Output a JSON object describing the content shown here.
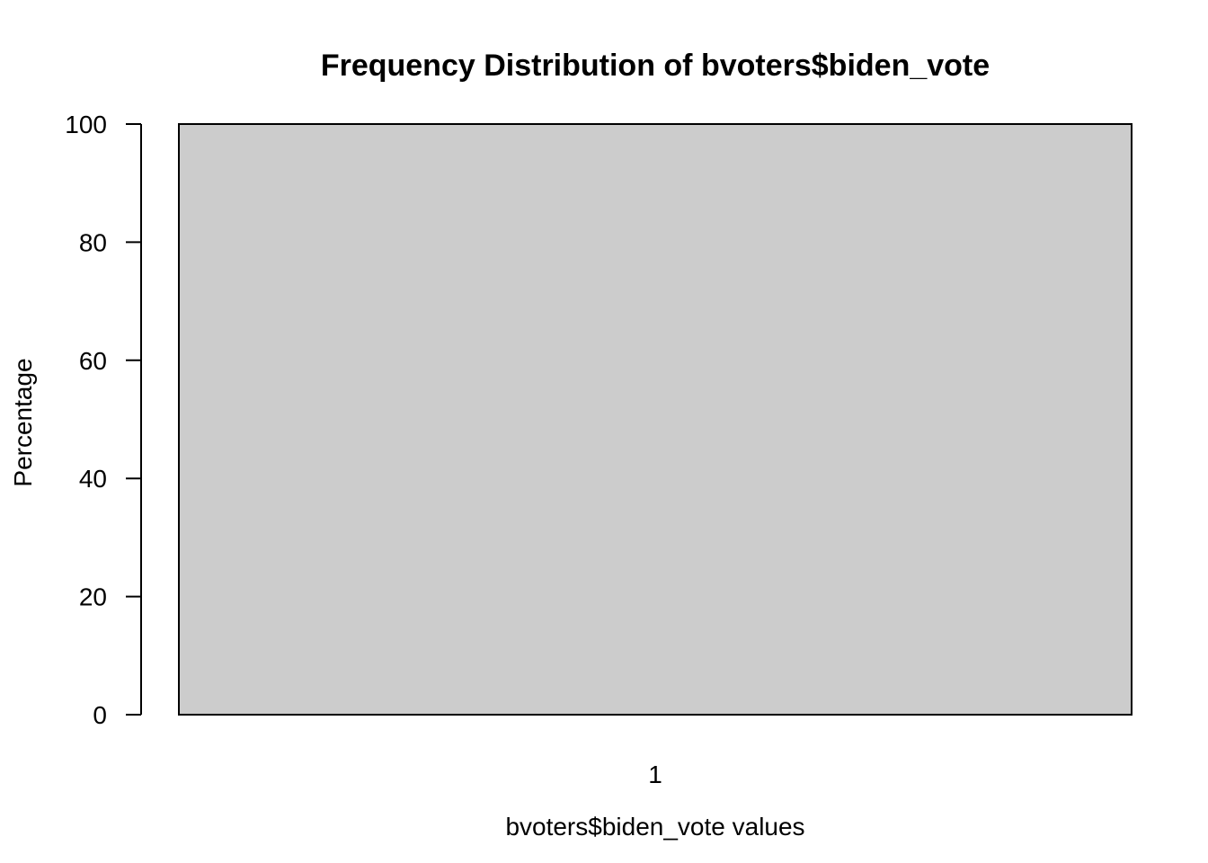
{
  "chart_data": {
    "type": "bar",
    "title": "Frequency Distribution of bvoters$biden_vote",
    "xlabel": "bvoters$biden_vote values",
    "ylabel": "Percentage",
    "categories": [
      "1"
    ],
    "values": [
      100
    ],
    "ylim": [
      0,
      100
    ],
    "yticks": [
      0,
      20,
      40,
      60,
      80,
      100
    ],
    "bar_color": "#cccccc",
    "grid": false
  }
}
